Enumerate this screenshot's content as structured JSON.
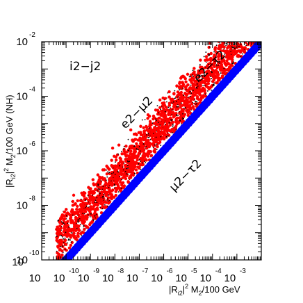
{
  "chart_data": {
    "type": "scatter",
    "title": "",
    "panel_label": "i2−j2",
    "xlabel": {
      "main": "|R",
      "sub": "i2",
      "sup": "2",
      "rest": " M",
      "sub2": "2",
      "tail": "/100 GeV"
    },
    "ylabel": {
      "main": "|R",
      "sub": "i2",
      "sup": "2",
      "rest": " M",
      "sub2": "2",
      "tail": "/100 GeV (NH)"
    },
    "xscale": "log",
    "yscale": "log",
    "xlim": [
      1e-11,
      0.01
    ],
    "ylim": [
      1e-10,
      0.01
    ],
    "x_ticks": [
      {
        "base": "10",
        "exp": "-10"
      },
      {
        "base": "10",
        "exp": "-9"
      },
      {
        "base": "10",
        "exp": "-8"
      },
      {
        "base": "10",
        "exp": "-7"
      },
      {
        "base": "10",
        "exp": "-6"
      },
      {
        "base": "10",
        "exp": "-5"
      },
      {
        "base": "10",
        "exp": "-4"
      },
      {
        "base": "10",
        "exp": "-3"
      }
    ],
    "x_origin_tick": {
      "base": "10"
    },
    "y_ticks": [
      {
        "base": "10",
        "exp": "-2"
      },
      {
        "base": "10",
        "exp": "-4"
      },
      {
        "base": "10",
        "exp": "-6"
      },
      {
        "base": "10",
        "exp": "-8"
      },
      {
        "base": "10",
        "exp": "-10"
      }
    ],
    "y_origin_tick": {
      "base": "10"
    },
    "grid": false,
    "series": [
      {
        "name": "e2−μ2 / e2−τ2",
        "color": "#ff0000",
        "edge_color": "#000000",
        "relation": "y ≈ x × 10^(0 to 2)",
        "points": [
          [
            1e-10,
            1e-09
          ],
          [
            1e-09,
            1e-08
          ],
          [
            1e-08,
            1e-07
          ],
          [
            1e-07,
            1e-06
          ],
          [
            1e-06,
            1e-05
          ],
          [
            1e-05,
            0.0001
          ],
          [
            0.0001,
            0.001
          ],
          [
            0.001,
            0.01
          ]
        ]
      },
      {
        "name": "μ2−τ2",
        "color": "#0000ff",
        "relation": "y = x",
        "points": [
          [
            1e-10,
            1e-10
          ],
          [
            1e-09,
            1e-09
          ],
          [
            1e-08,
            1e-08
          ],
          [
            1e-07,
            1e-07
          ],
          [
            1e-06,
            1e-06
          ],
          [
            1e-05,
            1e-05
          ],
          [
            0.0001,
            0.0001
          ],
          [
            0.001,
            0.001
          ],
          [
            0.01,
            0.01
          ]
        ]
      }
    ],
    "annotations": [
      {
        "text": "e2−τ2",
        "near": [
          0.0001,
          0.001
        ],
        "rotation_deg": -45
      },
      {
        "text": "e2−μ2",
        "near": [
          1e-07,
          2e-05
        ],
        "rotation_deg": -45
      },
      {
        "text": "μ2−τ2",
        "near": [
          1e-05,
          1e-07
        ],
        "rotation_deg": -45
      }
    ]
  }
}
